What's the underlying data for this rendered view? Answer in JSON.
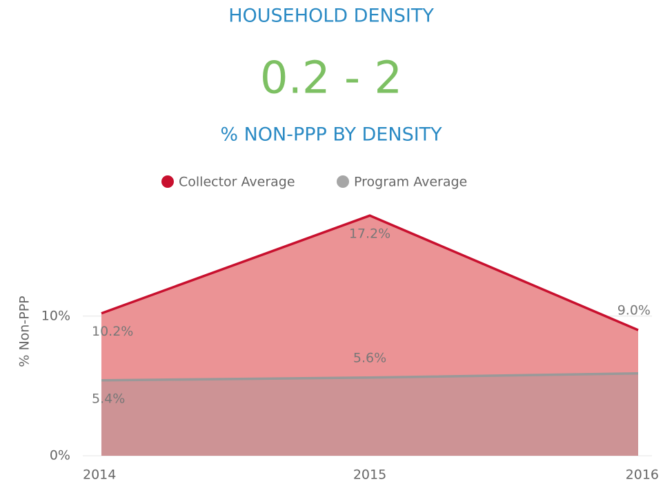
{
  "header": {
    "title": "HOUSEHOLD DENSITY",
    "value": "0.2 - 2"
  },
  "chart_data": {
    "type": "area",
    "title": "% NON-PPP BY DENSITY",
    "y_label": "% Non-PPP",
    "categories": [
      "2014",
      "2015",
      "2016"
    ],
    "series": [
      {
        "name": "Collector Average",
        "color": "#c8102e",
        "fill": "#eb9395",
        "values": [
          10.2,
          17.2,
          9.0
        ],
        "value_labels": [
          "10.2%",
          "17.2%",
          "9.0%"
        ]
      },
      {
        "name": "Program Average",
        "color": "#999999",
        "fill": "rgba(150,150,150,0.35)",
        "values": [
          5.4,
          5.6,
          5.9
        ],
        "value_labels": [
          "5.4%",
          "5.6%",
          null
        ]
      }
    ],
    "ylim": [
      0,
      18
    ],
    "yticks": [
      {
        "value": 0,
        "label": "0%"
      },
      {
        "value": 10,
        "label": "10%"
      }
    ],
    "grid": true,
    "legend": "top"
  }
}
